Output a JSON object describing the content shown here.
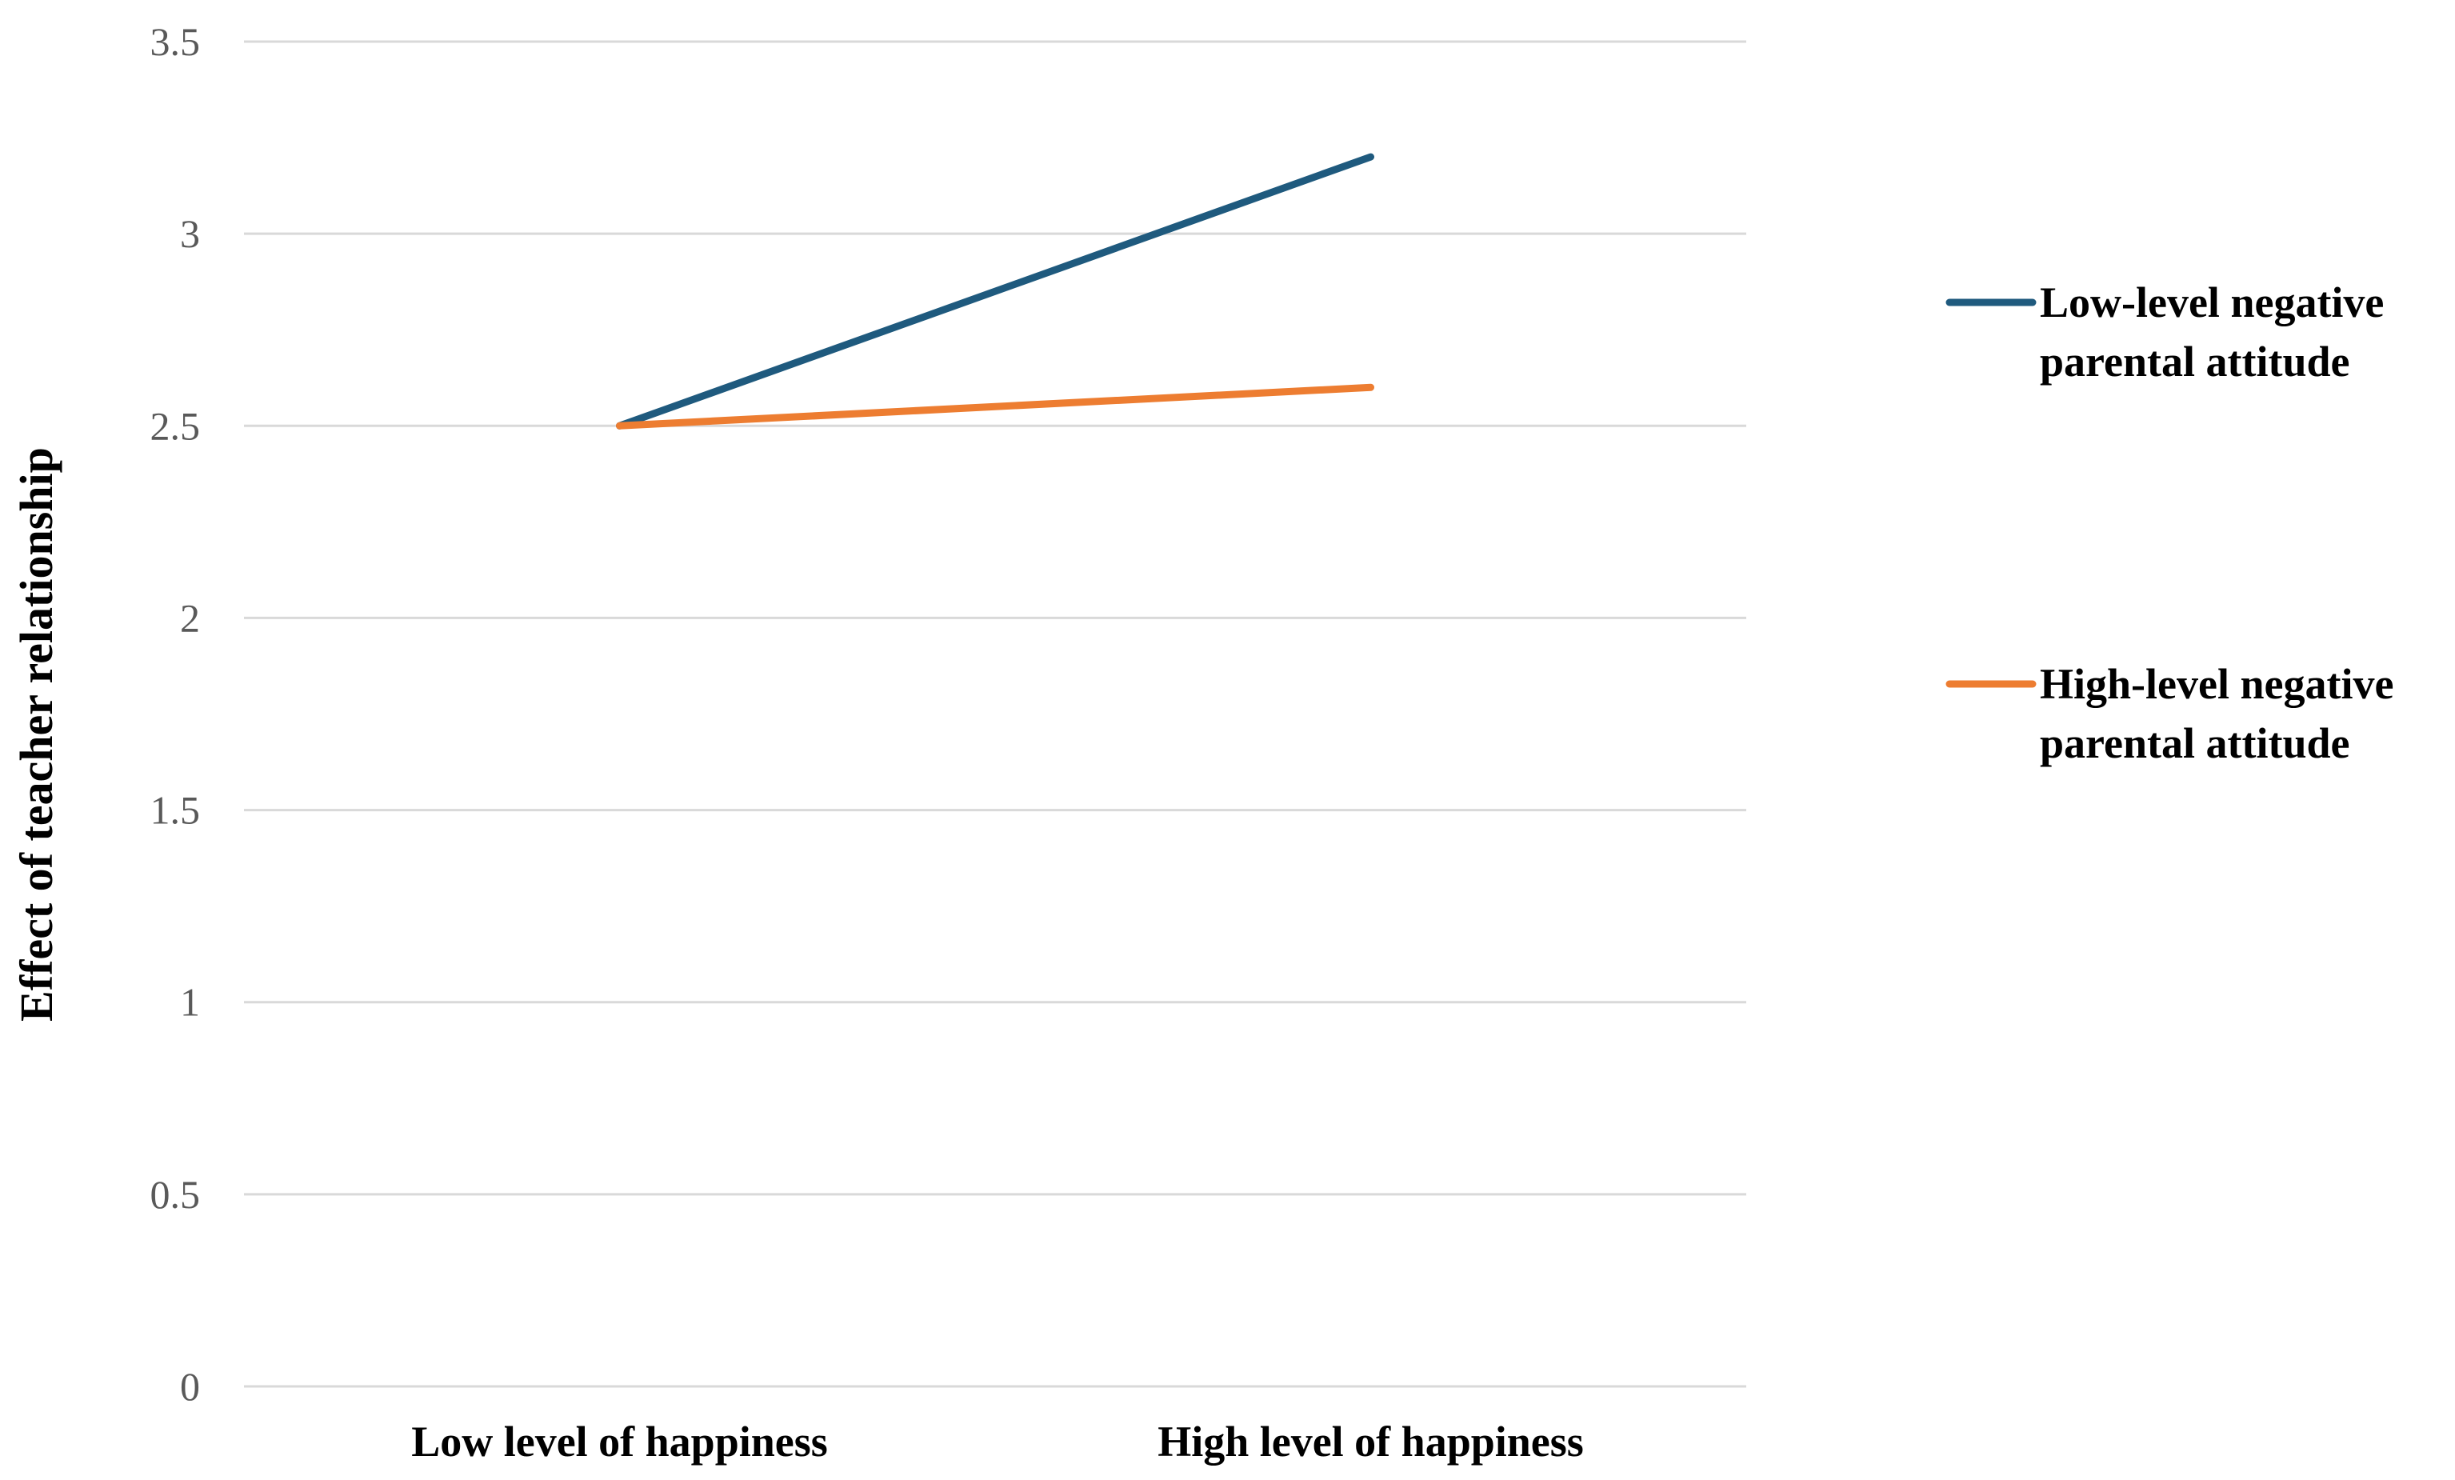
{
  "chart_data": {
    "type": "line",
    "title": "",
    "xlabel": "",
    "ylabel": "Effect of teacher relationship",
    "categories": [
      "Low level of happiness",
      "High level of happiness"
    ],
    "series": [
      {
        "name": "Low-level negative parental attitude",
        "legend_lines": [
          "Low-level negative",
          "parental attitude"
        ],
        "color": "#1f5a7e",
        "values": [
          2.5,
          3.2
        ]
      },
      {
        "name": "High-level negative parental attitude",
        "legend_lines": [
          "High-level negative",
          "parental attitude"
        ],
        "color": "#ed7d31",
        "values": [
          2.5,
          2.6
        ]
      }
    ],
    "ylim": [
      0,
      3.5
    ],
    "yticks": [
      "0",
      "0.5",
      "1",
      "1.5",
      "2",
      "2.5",
      "3",
      "3.5"
    ],
    "grid": true,
    "legend_position": "right"
  }
}
